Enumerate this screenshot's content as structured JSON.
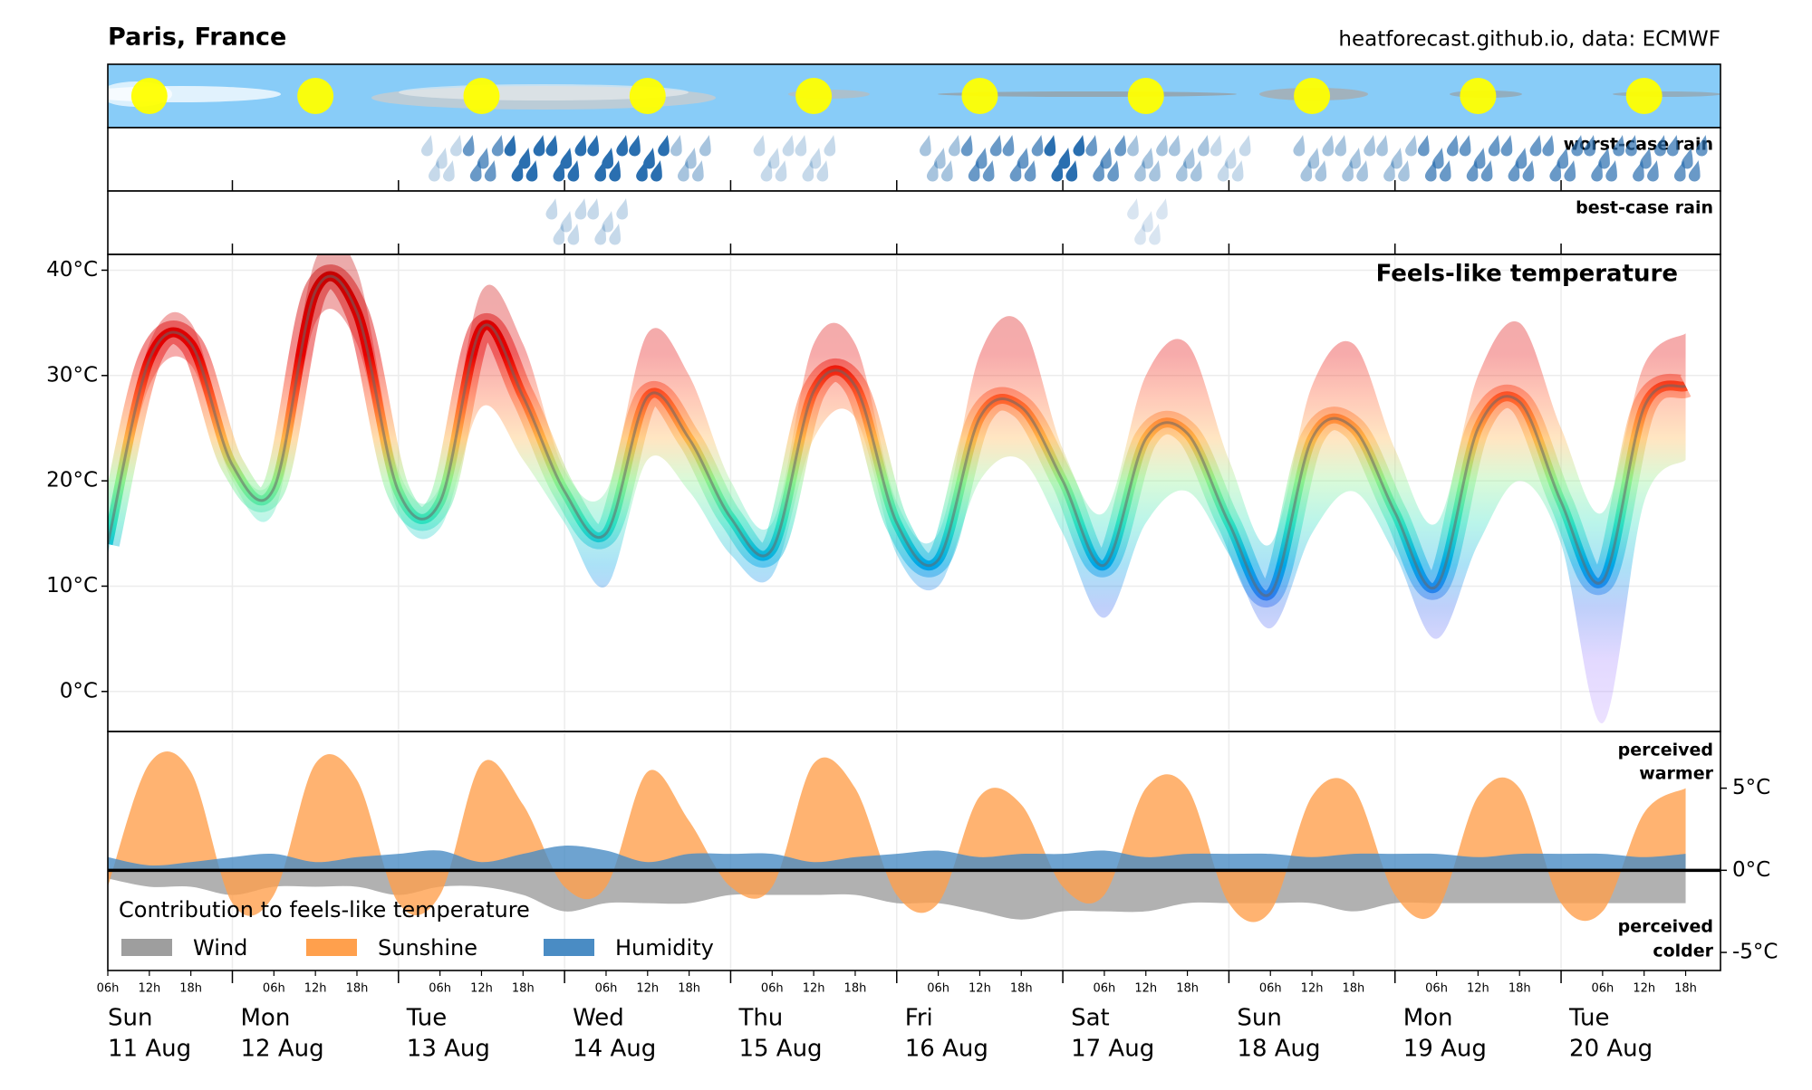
{
  "chart_data": {
    "type": "line",
    "title": "Paris, France",
    "source": "heatforecast.github.io, data: ECMWF",
    "subtitle": "Feels-like temperature",
    "day_names": [
      "Sun",
      "Mon",
      "Tue",
      "Wed",
      "Thu",
      "Fri",
      "Sat",
      "Sun",
      "Mon",
      "Tue"
    ],
    "day_dates": [
      "11 Aug",
      "12 Aug",
      "13 Aug",
      "14 Aug",
      "15 Aug",
      "16 Aug",
      "17 Aug",
      "18 Aug",
      "19 Aug",
      "20 Aug"
    ],
    "hour_labels": [
      "06h",
      "12h",
      "18h"
    ],
    "ylim": [
      -3.8,
      41.5
    ],
    "yticks": [
      {
        "value": 0,
        "label": "0°C"
      },
      {
        "value": 10,
        "label": "10°C"
      },
      {
        "value": 20,
        "label": "20°C"
      },
      {
        "value": 30,
        "label": "30°C"
      },
      {
        "value": 40,
        "label": "40°C"
      }
    ],
    "grid": true,
    "colormap": [
      [
        -4,
        "#c9a8ff"
      ],
      [
        3,
        "#a98cff"
      ],
      [
        8,
        "#3d6ff0"
      ],
      [
        12,
        "#00a6e6"
      ],
      [
        16,
        "#2ee0c0"
      ],
      [
        20,
        "#8cf08c"
      ],
      [
        24,
        "#ffb347"
      ],
      [
        28,
        "#ff5a2a"
      ],
      [
        32,
        "#e60000"
      ],
      [
        42,
        "#c00000"
      ]
    ],
    "temperature": {
      "values": [
        14,
        31.5,
        33,
        21.5,
        19.3,
        38,
        36,
        19,
        18,
        34.5,
        28,
        19,
        15,
        28,
        24,
        16.5,
        13.5,
        28.5,
        29,
        16,
        12.5,
        26,
        27,
        20,
        12,
        24,
        24.5,
        16,
        9.3,
        24,
        25,
        17,
        10,
        25,
        27.5,
        18,
        10.5,
        27,
        29
      ],
      "low": [
        13,
        29,
        31,
        20,
        17,
        35,
        33,
        17,
        15.5,
        27,
        22,
        16,
        10,
        22,
        19,
        13,
        11,
        24,
        26,
        13,
        10,
        20,
        22,
        15,
        7,
        16,
        19,
        13,
        6,
        15,
        19,
        13,
        5,
        14,
        20,
        14,
        -3,
        18,
        22
      ],
      "high": [
        15,
        33,
        35,
        22.5,
        20.5,
        41,
        40,
        21,
        19.5,
        38,
        33,
        21,
        19,
        34,
        30,
        20,
        16,
        33,
        33,
        18,
        15,
        32,
        35,
        23,
        17,
        30,
        33,
        22,
        14,
        29,
        33,
        23,
        16,
        30,
        35,
        25,
        17,
        31,
        34
      ]
    },
    "worst_rain": {
      "label": "worst-case rain",
      "color": "#2a6fb0",
      "values": [
        0,
        0,
        0,
        0,
        0,
        0,
        0,
        0,
        0.5,
        2,
        3,
        3,
        3,
        3,
        1,
        0,
        0.5,
        0.5,
        0,
        0,
        1,
        2,
        2,
        3,
        2,
        1,
        1,
        0.5,
        0,
        1,
        1,
        1,
        2,
        2,
        2,
        2,
        2,
        2,
        2
      ]
    },
    "best_rain": {
      "label": "best-case rain",
      "color": "#2a6fb0",
      "values": [
        0,
        0,
        0,
        0,
        0,
        0,
        0,
        0,
        0,
        0,
        0,
        0.5,
        0.5,
        0,
        0,
        0,
        0,
        0,
        0,
        0,
        0,
        0,
        0,
        0,
        0,
        0.2,
        0,
        0,
        0,
        0,
        0,
        0,
        0,
        0,
        0,
        0,
        0,
        0,
        0
      ]
    },
    "contribution": {
      "title": "Contribution to feels-like temperature",
      "warmer_label": [
        "perceived",
        "warmer"
      ],
      "colder_label": [
        "perceived",
        "colder"
      ],
      "ylim": [
        -6.1,
        8.45
      ],
      "yticks": [
        {
          "value": 5,
          "label": "5°C"
        },
        {
          "value": 0,
          "label": "0°C"
        },
        {
          "value": -5,
          "label": "-5°C"
        }
      ],
      "series": [
        {
          "name": "Wind",
          "color": "#9e9e9e",
          "values": [
            -0.5,
            -1,
            -1,
            -1.5,
            -1,
            -1,
            -1,
            -1.5,
            -1,
            -1,
            -1.5,
            -2.5,
            -2,
            -2,
            -2,
            -1.5,
            -1.5,
            -1.5,
            -1.5,
            -2,
            -2,
            -2.5,
            -3,
            -2.5,
            -2.5,
            -2.5,
            -2,
            -2,
            -2,
            -2,
            -2.5,
            -2,
            -2,
            -2,
            -2,
            -2,
            -2,
            -2,
            -2
          ]
        },
        {
          "name": "Sunshine",
          "color": "#ffa04d",
          "values": [
            -1,
            6.5,
            6,
            -2,
            -1.5,
            6.5,
            5.5,
            -2,
            -1.5,
            6.5,
            4,
            -1,
            -1,
            6,
            3,
            -1,
            -1,
            6.5,
            5,
            -1.5,
            -2,
            4.5,
            4,
            -1,
            -1.5,
            5,
            5,
            -2,
            -2.5,
            4.5,
            5,
            -1.5,
            -2.5,
            4.5,
            5,
            -2,
            -2.5,
            3.5,
            5
          ]
        },
        {
          "name": "Humidity",
          "color": "#4a8cc4",
          "values": [
            0.8,
            0.3,
            0.5,
            0.8,
            1,
            0.5,
            0.8,
            1,
            1.2,
            0.5,
            1,
            1.5,
            1.2,
            0.5,
            1,
            1,
            1,
            0.5,
            0.8,
            1,
            1.2,
            0.8,
            1,
            1,
            1.2,
            0.8,
            1,
            1,
            1,
            0.8,
            1,
            1,
            1,
            0.8,
            1,
            1,
            1,
            0.8,
            1
          ]
        }
      ]
    }
  }
}
